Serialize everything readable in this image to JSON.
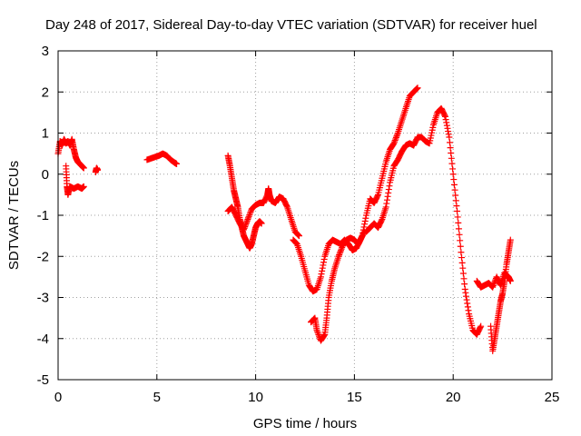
{
  "chart_data": {
    "type": "scatter",
    "title": "Day 248 of 2017, Sidereal Day-to-day VTEC variation (SDTVAR) for receiver huel",
    "xlabel": "GPS time / hours",
    "ylabel": "SDTVAR / TECUs",
    "xlim": [
      0,
      25
    ],
    "ylim": [
      -5,
      3
    ],
    "xticks": [
      0,
      5,
      10,
      15,
      20,
      25
    ],
    "yticks": [
      -5,
      -4,
      -3,
      -2,
      -1,
      0,
      1,
      2,
      3
    ],
    "xtick_labels": [
      "0",
      "5",
      "10",
      "15",
      "20",
      "25"
    ],
    "ytick_labels": [
      "-5",
      "-4",
      "-3",
      "-2",
      "-1",
      "0",
      "1",
      "2",
      "3"
    ],
    "grid": true,
    "legend": "none",
    "marker": "+",
    "color": "#ff0000",
    "series": [
      {
        "segments": [
          [
            [
              0.0,
              0.5
            ],
            [
              0.1,
              0.8
            ],
            [
              0.2,
              0.7
            ],
            [
              0.3,
              0.85
            ],
            [
              0.4,
              0.75
            ],
            [
              0.5,
              0.8
            ],
            [
              0.6,
              0.7
            ],
            [
              0.7,
              0.85
            ],
            [
              0.8,
              0.6
            ],
            [
              0.9,
              0.4
            ],
            [
              1.0,
              0.3
            ],
            [
              1.1,
              0.25
            ],
            [
              1.2,
              0.2
            ],
            [
              1.3,
              0.15
            ]
          ],
          [
            [
              0.4,
              0.2
            ],
            [
              0.45,
              -0.3
            ],
            [
              0.5,
              -0.5
            ],
            [
              0.6,
              -0.3
            ],
            [
              0.8,
              -0.35
            ],
            [
              1.0,
              -0.3
            ],
            [
              1.2,
              -0.35
            ],
            [
              1.3,
              -0.3
            ]
          ],
          [
            [
              1.9,
              0.05
            ],
            [
              1.95,
              0.15
            ],
            [
              2.0,
              0.1
            ]
          ],
          [
            [
              4.5,
              0.35
            ],
            [
              4.8,
              0.4
            ],
            [
              5.1,
              0.45
            ],
            [
              5.3,
              0.5
            ],
            [
              5.5,
              0.45
            ],
            [
              5.7,
              0.35
            ],
            [
              5.9,
              0.28
            ],
            [
              6.0,
              0.25
            ]
          ],
          [
            [
              8.6,
              0.45
            ],
            [
              8.7,
              0.2
            ],
            [
              8.8,
              -0.1
            ],
            [
              8.9,
              -0.4
            ],
            [
              9.0,
              -0.6
            ],
            [
              9.1,
              -0.8
            ],
            [
              9.2,
              -1.1
            ],
            [
              9.3,
              -1.3
            ],
            [
              9.4,
              -1.5
            ],
            [
              9.5,
              -1.6
            ],
            [
              9.6,
              -1.7
            ],
            [
              9.7,
              -1.8
            ],
            [
              9.8,
              -1.7
            ],
            [
              9.9,
              -1.5
            ],
            [
              10.0,
              -1.3
            ],
            [
              10.1,
              -1.2
            ],
            [
              10.2,
              -1.15
            ],
            [
              10.3,
              -1.2
            ]
          ],
          [
            [
              8.6,
              -0.9
            ],
            [
              8.8,
              -0.8
            ],
            [
              9.0,
              -1.0
            ],
            [
              9.2,
              -1.2
            ],
            [
              9.4,
              -1.35
            ],
            [
              9.6,
              -1.1
            ],
            [
              9.8,
              -0.85
            ],
            [
              10.0,
              -0.75
            ],
            [
              10.2,
              -0.7
            ],
            [
              10.4,
              -0.7
            ],
            [
              10.6,
              -0.5
            ],
            [
              10.65,
              -0.35
            ],
            [
              10.7,
              -0.5
            ],
            [
              10.8,
              -0.65
            ],
            [
              11.0,
              -0.7
            ],
            [
              11.2,
              -0.55
            ],
            [
              11.4,
              -0.6
            ],
            [
              11.6,
              -0.8
            ],
            [
              11.8,
              -1.1
            ],
            [
              12.0,
              -1.4
            ],
            [
              12.2,
              -1.5
            ]
          ],
          [
            [
              11.9,
              -1.6
            ],
            [
              12.1,
              -1.7
            ],
            [
              12.3,
              -2.0
            ],
            [
              12.5,
              -2.35
            ],
            [
              12.7,
              -2.7
            ],
            [
              12.9,
              -2.85
            ],
            [
              13.1,
              -2.8
            ],
            [
              13.3,
              -2.5
            ],
            [
              13.5,
              -2.0
            ],
            [
              13.7,
              -1.7
            ],
            [
              13.9,
              -1.6
            ],
            [
              14.1,
              -1.65
            ],
            [
              14.3,
              -1.7
            ],
            [
              14.5,
              -1.6
            ],
            [
              14.7,
              -1.7
            ],
            [
              14.9,
              -1.85
            ],
            [
              15.1,
              -1.8
            ],
            [
              15.3,
              -1.6
            ],
            [
              15.5,
              -1.4
            ]
          ],
          [
            [
              12.8,
              -3.6
            ],
            [
              13.0,
              -3.5
            ],
            [
              13.1,
              -3.8
            ],
            [
              13.3,
              -4.05
            ],
            [
              13.5,
              -3.9
            ],
            [
              13.6,
              -3.5
            ],
            [
              13.7,
              -3.0
            ],
            [
              13.85,
              -2.6
            ],
            [
              14.0,
              -2.3
            ],
            [
              14.2,
              -2.0
            ],
            [
              14.4,
              -1.75
            ],
            [
              14.6,
              -1.6
            ],
            [
              14.8,
              -1.55
            ],
            [
              15.0,
              -1.6
            ],
            [
              15.2,
              -1.7
            ],
            [
              15.4,
              -1.5
            ],
            [
              15.6,
              -1.0
            ],
            [
              15.8,
              -0.6
            ],
            [
              16.0,
              -0.7
            ],
            [
              16.2,
              -0.5
            ],
            [
              16.4,
              -0.1
            ],
            [
              16.6,
              0.3
            ],
            [
              16.8,
              0.6
            ],
            [
              17.0,
              0.75
            ],
            [
              17.2,
              1.0
            ],
            [
              17.4,
              1.3
            ],
            [
              17.6,
              1.6
            ],
            [
              17.8,
              1.9
            ],
            [
              18.0,
              2.0
            ],
            [
              18.2,
              2.1
            ]
          ],
          [
            [
              15.6,
              -1.4
            ],
            [
              15.8,
              -1.3
            ],
            [
              16.0,
              -1.2
            ],
            [
              16.2,
              -1.3
            ],
            [
              16.4,
              -1.1
            ],
            [
              16.6,
              -0.8
            ],
            [
              16.8,
              -0.2
            ],
            [
              17.0,
              0.2
            ],
            [
              17.2,
              0.35
            ],
            [
              17.4,
              0.55
            ],
            [
              17.6,
              0.7
            ],
            [
              17.8,
              0.75
            ],
            [
              18.0,
              0.7
            ],
            [
              18.2,
              0.9
            ],
            [
              18.4,
              0.9
            ],
            [
              18.6,
              0.8
            ],
            [
              18.8,
              0.75
            ],
            [
              19.0,
              1.2
            ],
            [
              19.2,
              1.5
            ],
            [
              19.4,
              1.6
            ],
            [
              19.6,
              1.4
            ],
            [
              19.8,
              0.9
            ],
            [
              20.0,
              0.0
            ],
            [
              20.2,
              -0.9
            ],
            [
              20.4,
              -1.9
            ],
            [
              20.6,
              -2.8
            ],
            [
              20.8,
              -3.4
            ],
            [
              21.0,
              -3.8
            ],
            [
              21.2,
              -3.9
            ],
            [
              21.4,
              -3.7
            ]
          ],
          [
            [
              21.2,
              -2.6
            ],
            [
              21.4,
              -2.75
            ],
            [
              21.6,
              -2.7
            ],
            [
              21.8,
              -2.65
            ],
            [
              22.0,
              -2.75
            ],
            [
              22.2,
              -2.5
            ],
            [
              22.4,
              -2.7
            ],
            [
              22.6,
              -2.4
            ],
            [
              22.8,
              -2.5
            ],
            [
              22.9,
              -2.6
            ]
          ],
          [
            [
              21.9,
              -3.7
            ],
            [
              22.0,
              -4.3
            ],
            [
              22.1,
              -4.0
            ],
            [
              22.2,
              -3.7
            ],
            [
              22.3,
              -3.4
            ],
            [
              22.4,
              -3.1
            ],
            [
              22.5,
              -2.9
            ],
            [
              22.6,
              -2.6
            ],
            [
              22.7,
              -2.2
            ],
            [
              22.8,
              -1.9
            ],
            [
              22.9,
              -1.6
            ]
          ]
        ]
      }
    ]
  }
}
